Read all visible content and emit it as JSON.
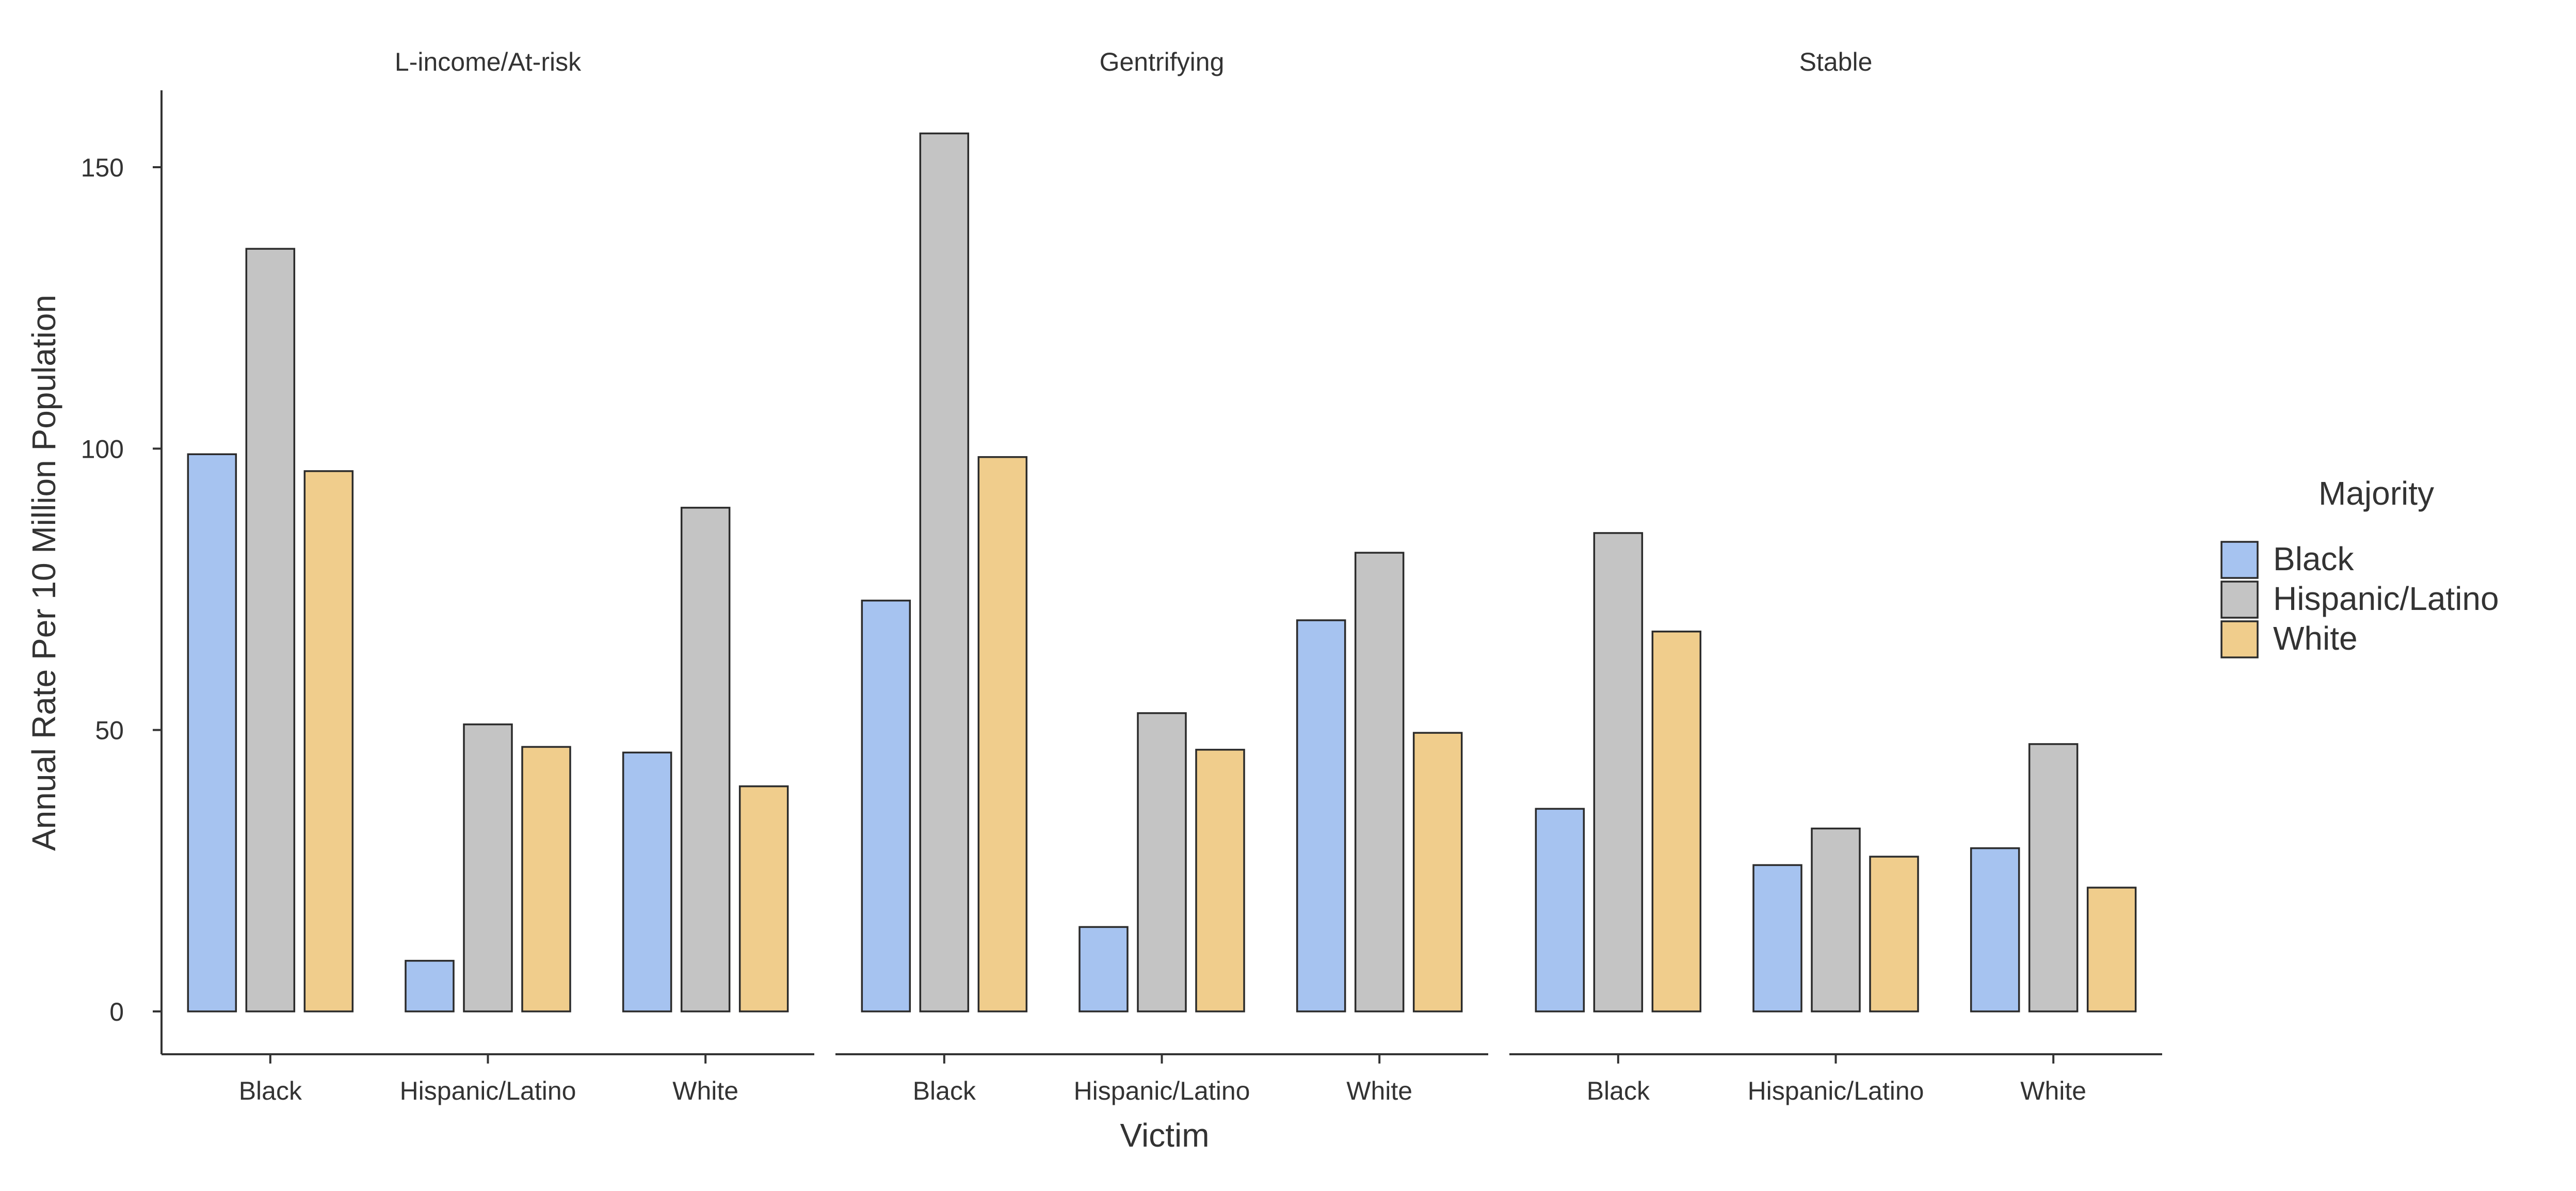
{
  "chart_data": {
    "type": "bar",
    "xlabel": "Victim",
    "ylabel": "Annual Rate Per 10 Million Population",
    "ylim": [
      0,
      163
    ],
    "yticks": [
      0,
      50,
      100,
      150
    ],
    "grid": false,
    "legend_title": "Majority",
    "legend_position": "right",
    "categories": [
      "Black",
      "Hispanic/Latino",
      "White"
    ],
    "series": [
      {
        "name": "Black",
        "color": "#a6c3f0"
      },
      {
        "name": "Hispanic/Latino",
        "color": "#c4c4c4"
      },
      {
        "name": "White",
        "color": "#f0cd8c"
      }
    ],
    "facets": [
      {
        "name": "L-income/At-risk",
        "values": [
          [
            99,
            135.5,
            96
          ],
          [
            9,
            51,
            47
          ],
          [
            46,
            89.5,
            40
          ]
        ]
      },
      {
        "name": "Gentrifying",
        "values": [
          [
            73,
            156,
            98.5
          ],
          [
            15,
            53,
            46.5
          ],
          [
            69.5,
            81.5,
            49.5
          ]
        ]
      },
      {
        "name": "Stable",
        "values": [
          [
            36,
            85,
            67.5
          ],
          [
            26,
            32.5,
            27.5
          ],
          [
            29,
            47.5,
            22
          ]
        ]
      }
    ]
  }
}
